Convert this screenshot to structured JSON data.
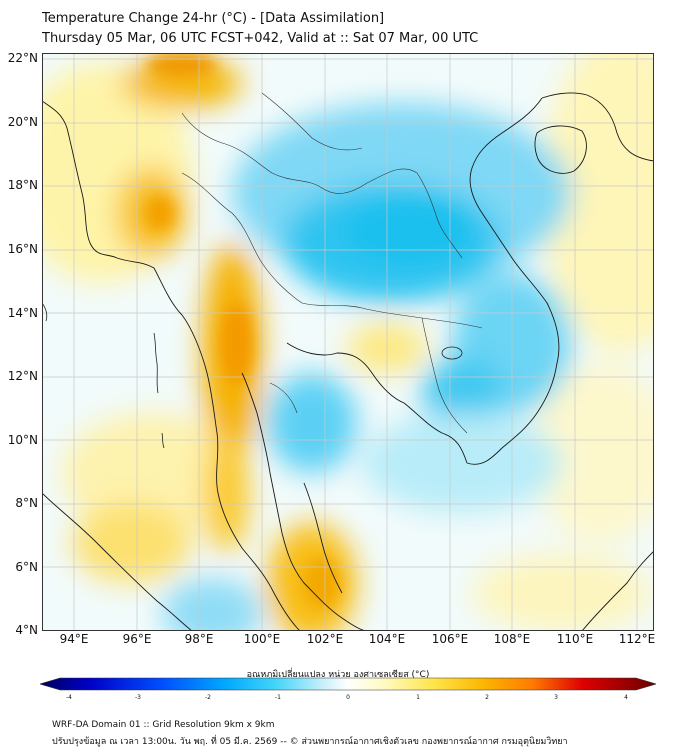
{
  "title": {
    "line1": "Temperature Change 24-hr (°C) - [Data Assimilation]",
    "line2": "Thursday 05 Mar, 06 UTC FCST+042, Valid at :: Sat 07 Mar, 00 UTC"
  },
  "axes": {
    "lat_labels": [
      "22°N",
      "20°N",
      "18°N",
      "16°N",
      "14°N",
      "12°N",
      "10°N",
      "8°N",
      "6°N",
      "4°N"
    ],
    "lon_labels": [
      "94°E",
      "96°E",
      "98°E",
      "100°E",
      "102°E",
      "104°E",
      "106°E",
      "108°E",
      "110°E",
      "112°E"
    ]
  },
  "colorbar": {
    "title": "อุณหภูมิเปลี่ยนแปลง หน่วย องศาเซลเซียส (°C)",
    "ticks": [
      "-4",
      "-3",
      "-2",
      "-1",
      "0",
      "1",
      "2",
      "3",
      "4"
    ]
  },
  "footer": {
    "line1": "WRF-DA Domain 01 :: Grid Resolution 9km x 9km",
    "line2": "ปรับปรุงข้อมูล ณ เวลา 13:00น. วัน พฤ. ที่ 05 มี.ค. 2569 -- © ส่วนพยากรณ์อากาศเชิงตัวเลข กองพยากรณ์อากาศ กรมอุตุนิยมวิทยา"
  },
  "colors": {
    "cool_strong": "#1ec8f0",
    "cool_light": "#a8e8fa",
    "neutral": "#eef8fb",
    "warm_light": "#fff4a8",
    "warm": "#fcd23c",
    "warm_strong": "#f5a300",
    "land_outline": "#222222",
    "grid": "#cccccc"
  }
}
